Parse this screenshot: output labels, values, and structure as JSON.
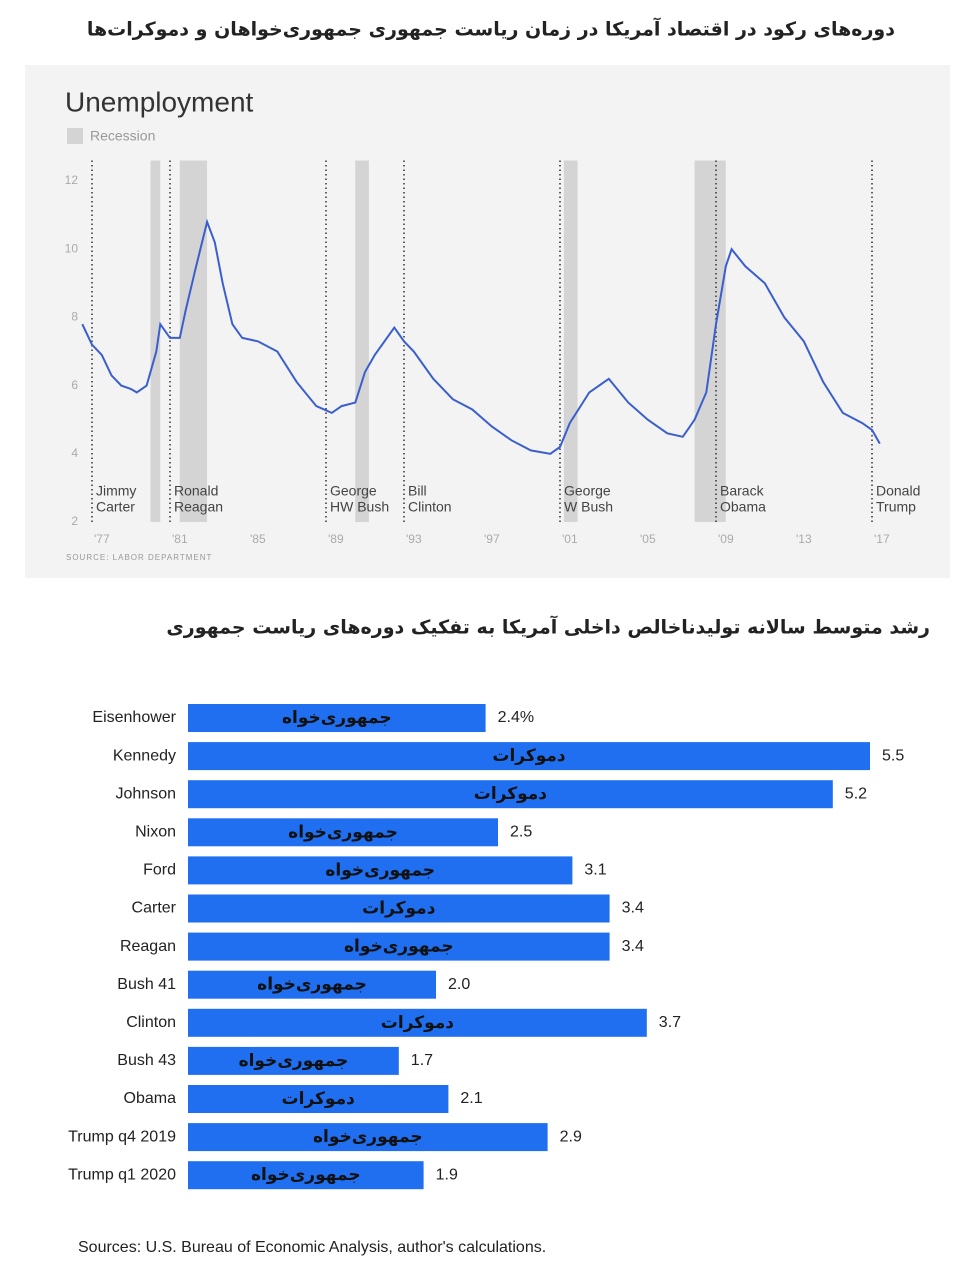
{
  "header": {
    "title": "دوره‌های رکود در اقتصاد آمریکا در زمان ریاست جمهوری جمهوری‌خواهان و دموکرات‌ها"
  },
  "chart_data": [
    {
      "type": "line",
      "title": "Unemployment",
      "legend_label": "Recession",
      "recession_color": "#d4d4d4",
      "color": "#3a5fcd",
      "source": "SOURCE: LABOR DEPARTMENT",
      "x": [
        1976.5,
        1977,
        1977.5,
        1978,
        1978.5,
        1979,
        1979.3,
        1979.8,
        1980.3,
        1980.5,
        1981,
        1981.5,
        1981.8,
        1982.3,
        1982.9,
        1983.3,
        1983.7,
        1984.2,
        1984.7,
        1985.5,
        1986.5,
        1987.5,
        1988.5,
        1989.3,
        1989.8,
        1990.5,
        1991,
        1991.5,
        1992.5,
        1993,
        1993.5,
        1994.5,
        1995.5,
        1996.5,
        1997.5,
        1998.5,
        1999.5,
        2000.5,
        2001,
        2001.5,
        2002.5,
        2003.5,
        2004.5,
        2005.5,
        2006.5,
        2007.3,
        2007.9,
        2008.5,
        2009,
        2009.5,
        2009.8,
        2010.5,
        2011.5,
        2012.5,
        2013.5,
        2014.5,
        2015.5,
        2016.5,
        2017,
        2017.4
      ],
      "values": [
        7.8,
        7.2,
        6.9,
        6.3,
        6.0,
        5.9,
        5.8,
        6.0,
        7.0,
        7.8,
        7.4,
        7.4,
        8.2,
        9.4,
        10.8,
        10.2,
        9.0,
        7.8,
        7.4,
        7.3,
        7.0,
        6.1,
        5.4,
        5.2,
        5.4,
        5.5,
        6.4,
        6.9,
        7.7,
        7.3,
        7.0,
        6.2,
        5.6,
        5.3,
        4.8,
        4.4,
        4.1,
        4.0,
        4.2,
        4.9,
        5.8,
        6.2,
        5.5,
        5.0,
        4.6,
        4.5,
        5.0,
        5.8,
        7.8,
        9.5,
        10.0,
        9.5,
        9.0,
        8.0,
        7.3,
        6.1,
        5.2,
        4.9,
        4.7,
        4.3
      ],
      "recessions": [
        [
          1980.0,
          1980.5
        ],
        [
          1981.5,
          1982.9
        ],
        [
          1990.5,
          1991.2
        ],
        [
          2001.2,
          2001.9
        ],
        [
          2007.9,
          2009.5
        ]
      ],
      "annotations": [
        {
          "x": 1977,
          "text": [
            "Jimmy",
            "Carter"
          ]
        },
        {
          "x": 1981,
          "text": [
            "Ronald",
            "Reagan"
          ]
        },
        {
          "x": 1989,
          "text": [
            "George",
            "HW Bush"
          ]
        },
        {
          "x": 1993,
          "text": [
            "Bill",
            "Clinton"
          ]
        },
        {
          "x": 2001,
          "text": [
            "George",
            "W Bush"
          ]
        },
        {
          "x": 2009,
          "text": [
            "Barack",
            "Obama"
          ]
        },
        {
          "x": 2017,
          "text": [
            "Donald",
            "Trump"
          ]
        }
      ],
      "xlim": [
        1976.5,
        2018.3
      ],
      "xticks": [
        {
          "value": 1977,
          "label": "'77"
        },
        {
          "value": 1981,
          "label": "'81"
        },
        {
          "value": 1985,
          "label": "'85"
        },
        {
          "value": 1989,
          "label": "'89"
        },
        {
          "value": 1993,
          "label": "'93"
        },
        {
          "value": 1997,
          "label": "'97"
        },
        {
          "value": 2001,
          "label": "'01"
        },
        {
          "value": 2005,
          "label": "'05"
        },
        {
          "value": 2009,
          "label": "'09"
        },
        {
          "value": 2013,
          "label": "'13"
        },
        {
          "value": 2017,
          "label": "'17"
        }
      ],
      "ylim": [
        2,
        12.6
      ],
      "yticks": [
        2,
        4,
        6,
        8,
        10,
        12
      ]
    },
    {
      "type": "bar",
      "orientation": "horizontal",
      "title": "رشد متوسط سالانه تولیدناخالص داخلی آمریکا به تفکیک دوره‌های ریاست جمهوری",
      "categories": [
        "Eisenhower",
        "Kennedy",
        "Johnson",
        "Nixon",
        "Ford",
        "Carter",
        "Reagan",
        "Bush 41",
        "Clinton",
        "Bush 43",
        "Obama",
        "Trump q4 2019",
        "Trump q1 2020"
      ],
      "values": [
        2.4,
        5.5,
        5.2,
        2.5,
        3.1,
        3.4,
        3.4,
        2.0,
        3.7,
        1.7,
        2.1,
        2.9,
        1.9
      ],
      "value_labels": [
        "2.4%",
        "5.5",
        "5.2",
        "2.5",
        "3.1",
        "3.4",
        "3.4",
        "2.0",
        "3.7",
        "1.7",
        "2.1",
        "2.9",
        "1.9"
      ],
      "bar_text": [
        "جمهوری‌خواه",
        "دموکرات",
        "دموکرات",
        "جمهوری‌خواه",
        "جمهوری‌خواه",
        "دموکرات",
        "جمهوری‌خواه",
        "جمهوری‌خواه",
        "دموکرات",
        "جمهوری‌خواه",
        "دموکرات",
        "جمهوری‌خواه",
        "جمهوری‌خواه"
      ],
      "color": "#1f6ff0",
      "xlim": [
        0,
        5.5
      ],
      "source": "Sources: U.S. Bureau of Economic Analysis, author's calculations."
    }
  ]
}
